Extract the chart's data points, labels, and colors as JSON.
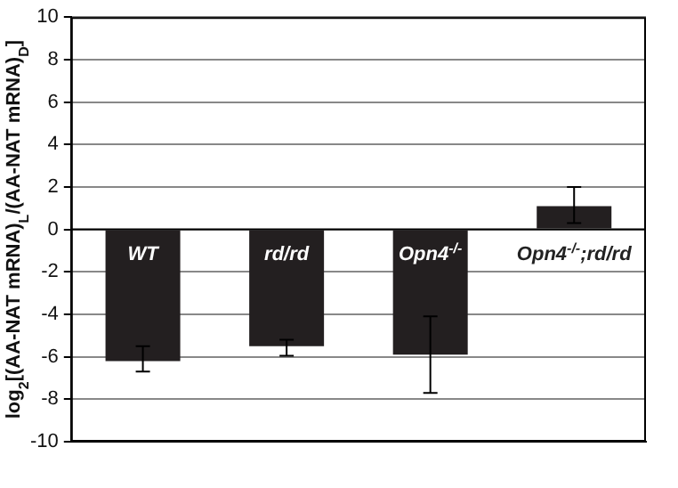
{
  "chart_data": {
    "type": "bar",
    "ylabel": "log$_{2}$[(AA-NAT mRNA)$_{L}$/(AA-NAT mRNA)$_{D}$]",
    "categories": [
      "WT",
      "rd/rd",
      "Opn4$^{-/-}$",
      "Opn4$^{-/-}$;rd/rd"
    ],
    "values": [
      -6.2,
      -5.5,
      -5.9,
      1.1
    ],
    "errors": [
      [
        -6.7,
        -5.5
      ],
      [
        -5.95,
        -5.2
      ],
      [
        -7.7,
        -4.1
      ],
      [
        0.3,
        2.0
      ]
    ],
    "color": "#231f20",
    "ylim": [
      -10,
      10
    ],
    "yticks": [
      -10,
      -8,
      -6,
      -4,
      -2,
      0,
      2,
      4,
      6,
      8,
      10
    ],
    "grid": "y",
    "tick_labels": "y"
  }
}
